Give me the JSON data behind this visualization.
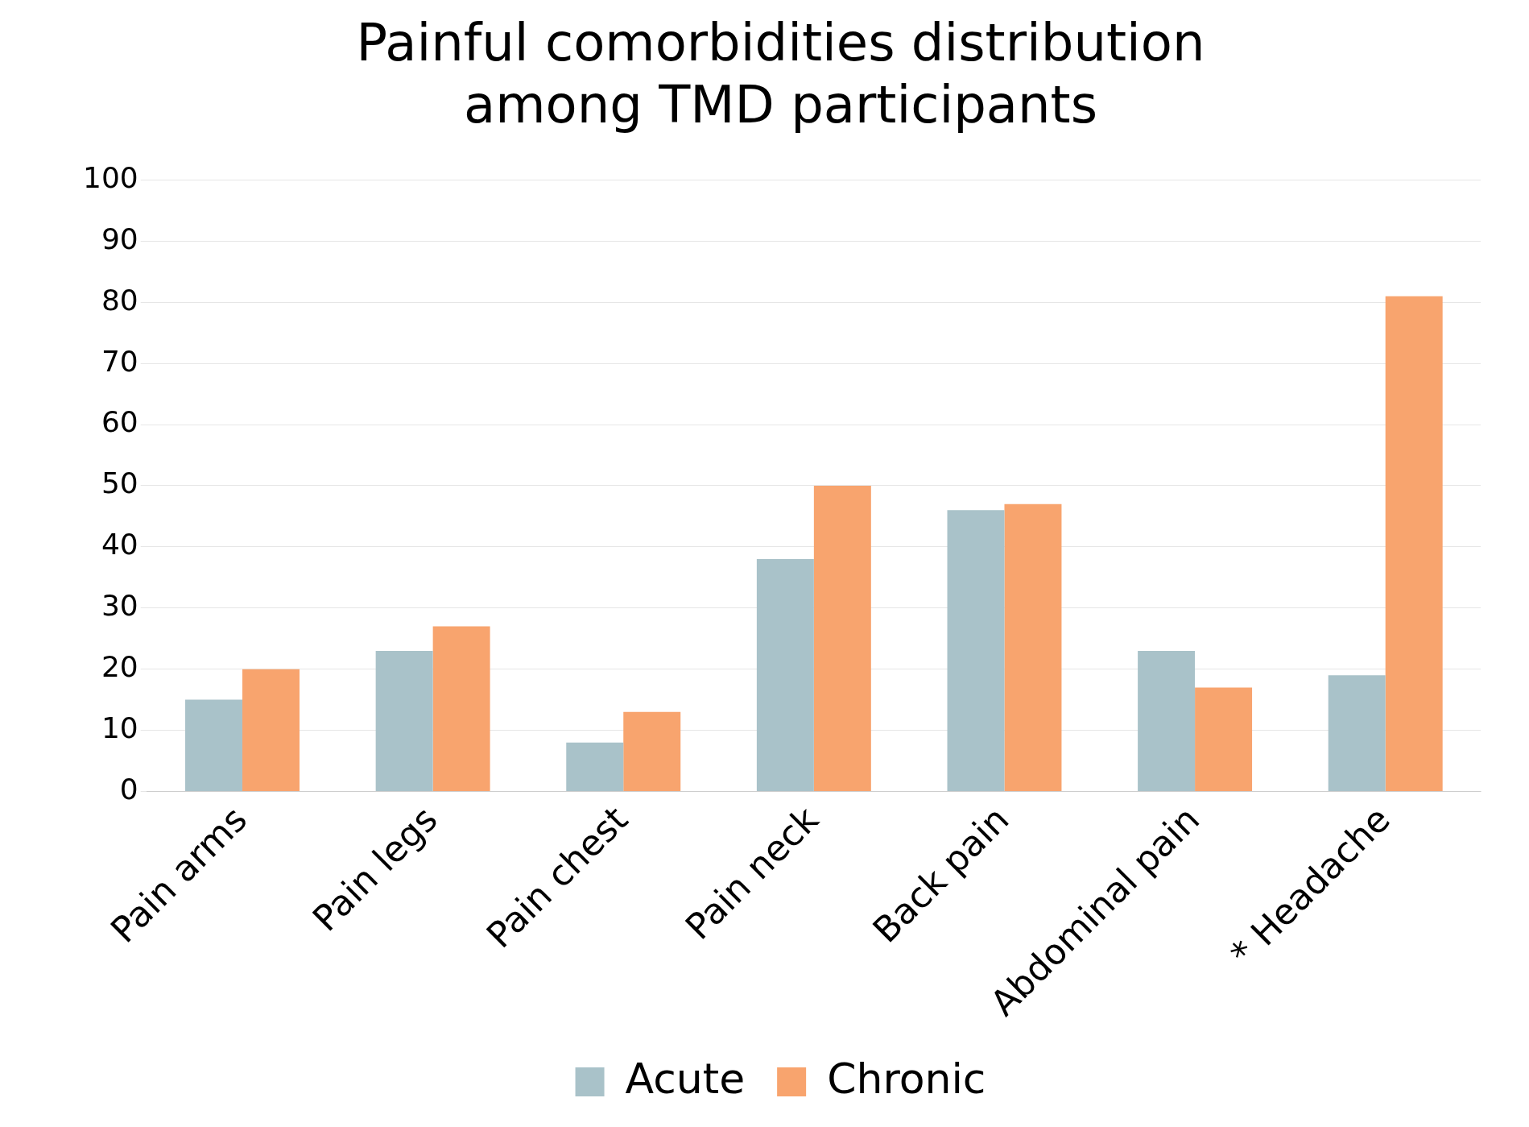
{
  "chart_data": {
    "type": "bar",
    "title": "Painful comorbidities distribution\namong TMD participants",
    "categories": [
      "Pain arms",
      "Pain legs",
      "Pain chest",
      "Pain neck",
      "Back pain",
      "Abdominal pain",
      "* Headache"
    ],
    "series": [
      {
        "name": "Acute",
        "color": "#a9c2c9",
        "values": [
          15,
          23,
          8,
          38,
          46,
          23,
          19
        ]
      },
      {
        "name": "Chronic",
        "color": "#f8a46e",
        "values": [
          20,
          27,
          13,
          50,
          47,
          17,
          81
        ]
      }
    ],
    "ylim": [
      0,
      100
    ],
    "yticks": [
      0,
      10,
      20,
      30,
      40,
      50,
      60,
      70,
      80,
      90,
      100
    ],
    "grid": "y",
    "legend": "bottom"
  }
}
